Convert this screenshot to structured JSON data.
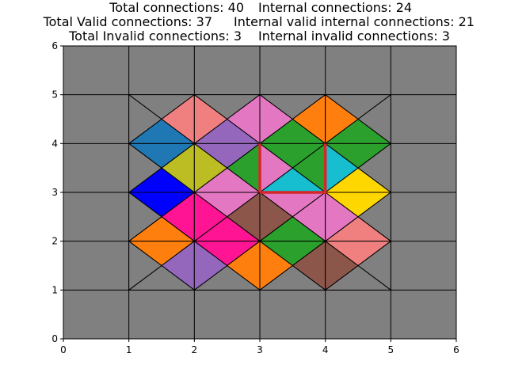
{
  "title_lines": [
    [
      "Total connections: 40",
      "Internal connections: 24"
    ],
    [
      "Total Valid connections: 37",
      "Internal valid internal connections: 21"
    ],
    [
      "Total Invalid connections: 3",
      "Internal invalid connections: 3"
    ]
  ],
  "chart_data": {
    "type": "heatmap",
    "xlim": [
      0,
      6
    ],
    "ylim": [
      0,
      6
    ],
    "xticks": [
      "0",
      "1",
      "2",
      "3",
      "4",
      "5",
      "6"
    ],
    "yticks": [
      "0",
      "1",
      "2",
      "3",
      "4",
      "5",
      "6"
    ],
    "grid": true,
    "background_color": "#808080",
    "line_color": "#000000",
    "highlight": {
      "color": "#d62728",
      "path": [
        [
          3,
          3
        ],
        [
          3,
          4
        ]
      ],
      "path2": [
        [
          3,
          3
        ],
        [
          4,
          3
        ],
        [
          4,
          4
        ]
      ]
    },
    "colors": {
      "salmon": "#f08080",
      "pink": "#e377c2",
      "orange": "#ff7f0e",
      "blue": "#1f77b4",
      "purple": "#9467bd",
      "green": "#2ca02c",
      "olive": "#bcbd22",
      "cyan": "#17becf",
      "pureblue": "#0000ff",
      "gold": "#ffd700",
      "deeppink": "#ff1493",
      "brown": "#8c564b",
      "gray": "#808080"
    },
    "tiles": [
      {
        "x": 1,
        "y": 4,
        "t": "gray",
        "r": "salmon",
        "b": "blue",
        "l": "gray"
      },
      {
        "x": 2,
        "y": 4,
        "t": "gray",
        "r": "pink",
        "b": "purple",
        "l": "salmon"
      },
      {
        "x": 3,
        "y": 4,
        "t": "gray",
        "r": "orange",
        "b": "green",
        "l": "pink"
      },
      {
        "x": 4,
        "y": 4,
        "t": "gray",
        "r": "gray",
        "b": "green",
        "l": "orange"
      },
      {
        "x": 1,
        "y": 3,
        "t": "blue",
        "r": "olive",
        "b": "pureblue",
        "l": "gray"
      },
      {
        "x": 2,
        "y": 3,
        "t": "purple",
        "r": "green",
        "b": "pink",
        "l": "olive"
      },
      {
        "x": 3,
        "y": 3,
        "t": "green",
        "r": "green",
        "b": "cyan",
        "l": "pink"
      },
      {
        "x": 4,
        "y": 3,
        "t": "green",
        "r": "gray",
        "b": "gold",
        "l": "cyan"
      },
      {
        "x": 1,
        "y": 2,
        "t": "pureblue",
        "r": "deeppink",
        "b": "orange",
        "l": "gray"
      },
      {
        "x": 2,
        "y": 2,
        "t": "pink",
        "r": "brown",
        "b": "deeppink",
        "l": "deeppink"
      },
      {
        "x": 3,
        "y": 2,
        "t": "pink",
        "r": "pink",
        "b": "green",
        "l": "brown"
      },
      {
        "x": 4,
        "y": 2,
        "t": "gold",
        "r": "gray",
        "b": "salmon",
        "l": "pink"
      },
      {
        "x": 1,
        "y": 1,
        "t": "orange",
        "r": "purple",
        "b": "gray",
        "l": "gray"
      },
      {
        "x": 2,
        "y": 1,
        "t": "deeppink",
        "r": "orange",
        "b": "gray",
        "l": "purple"
      },
      {
        "x": 3,
        "y": 1,
        "t": "green",
        "r": "brown",
        "b": "gray",
        "l": "orange"
      },
      {
        "x": 4,
        "y": 1,
        "t": "salmon",
        "r": "gray",
        "b": "gray",
        "l": "brown"
      }
    ]
  }
}
